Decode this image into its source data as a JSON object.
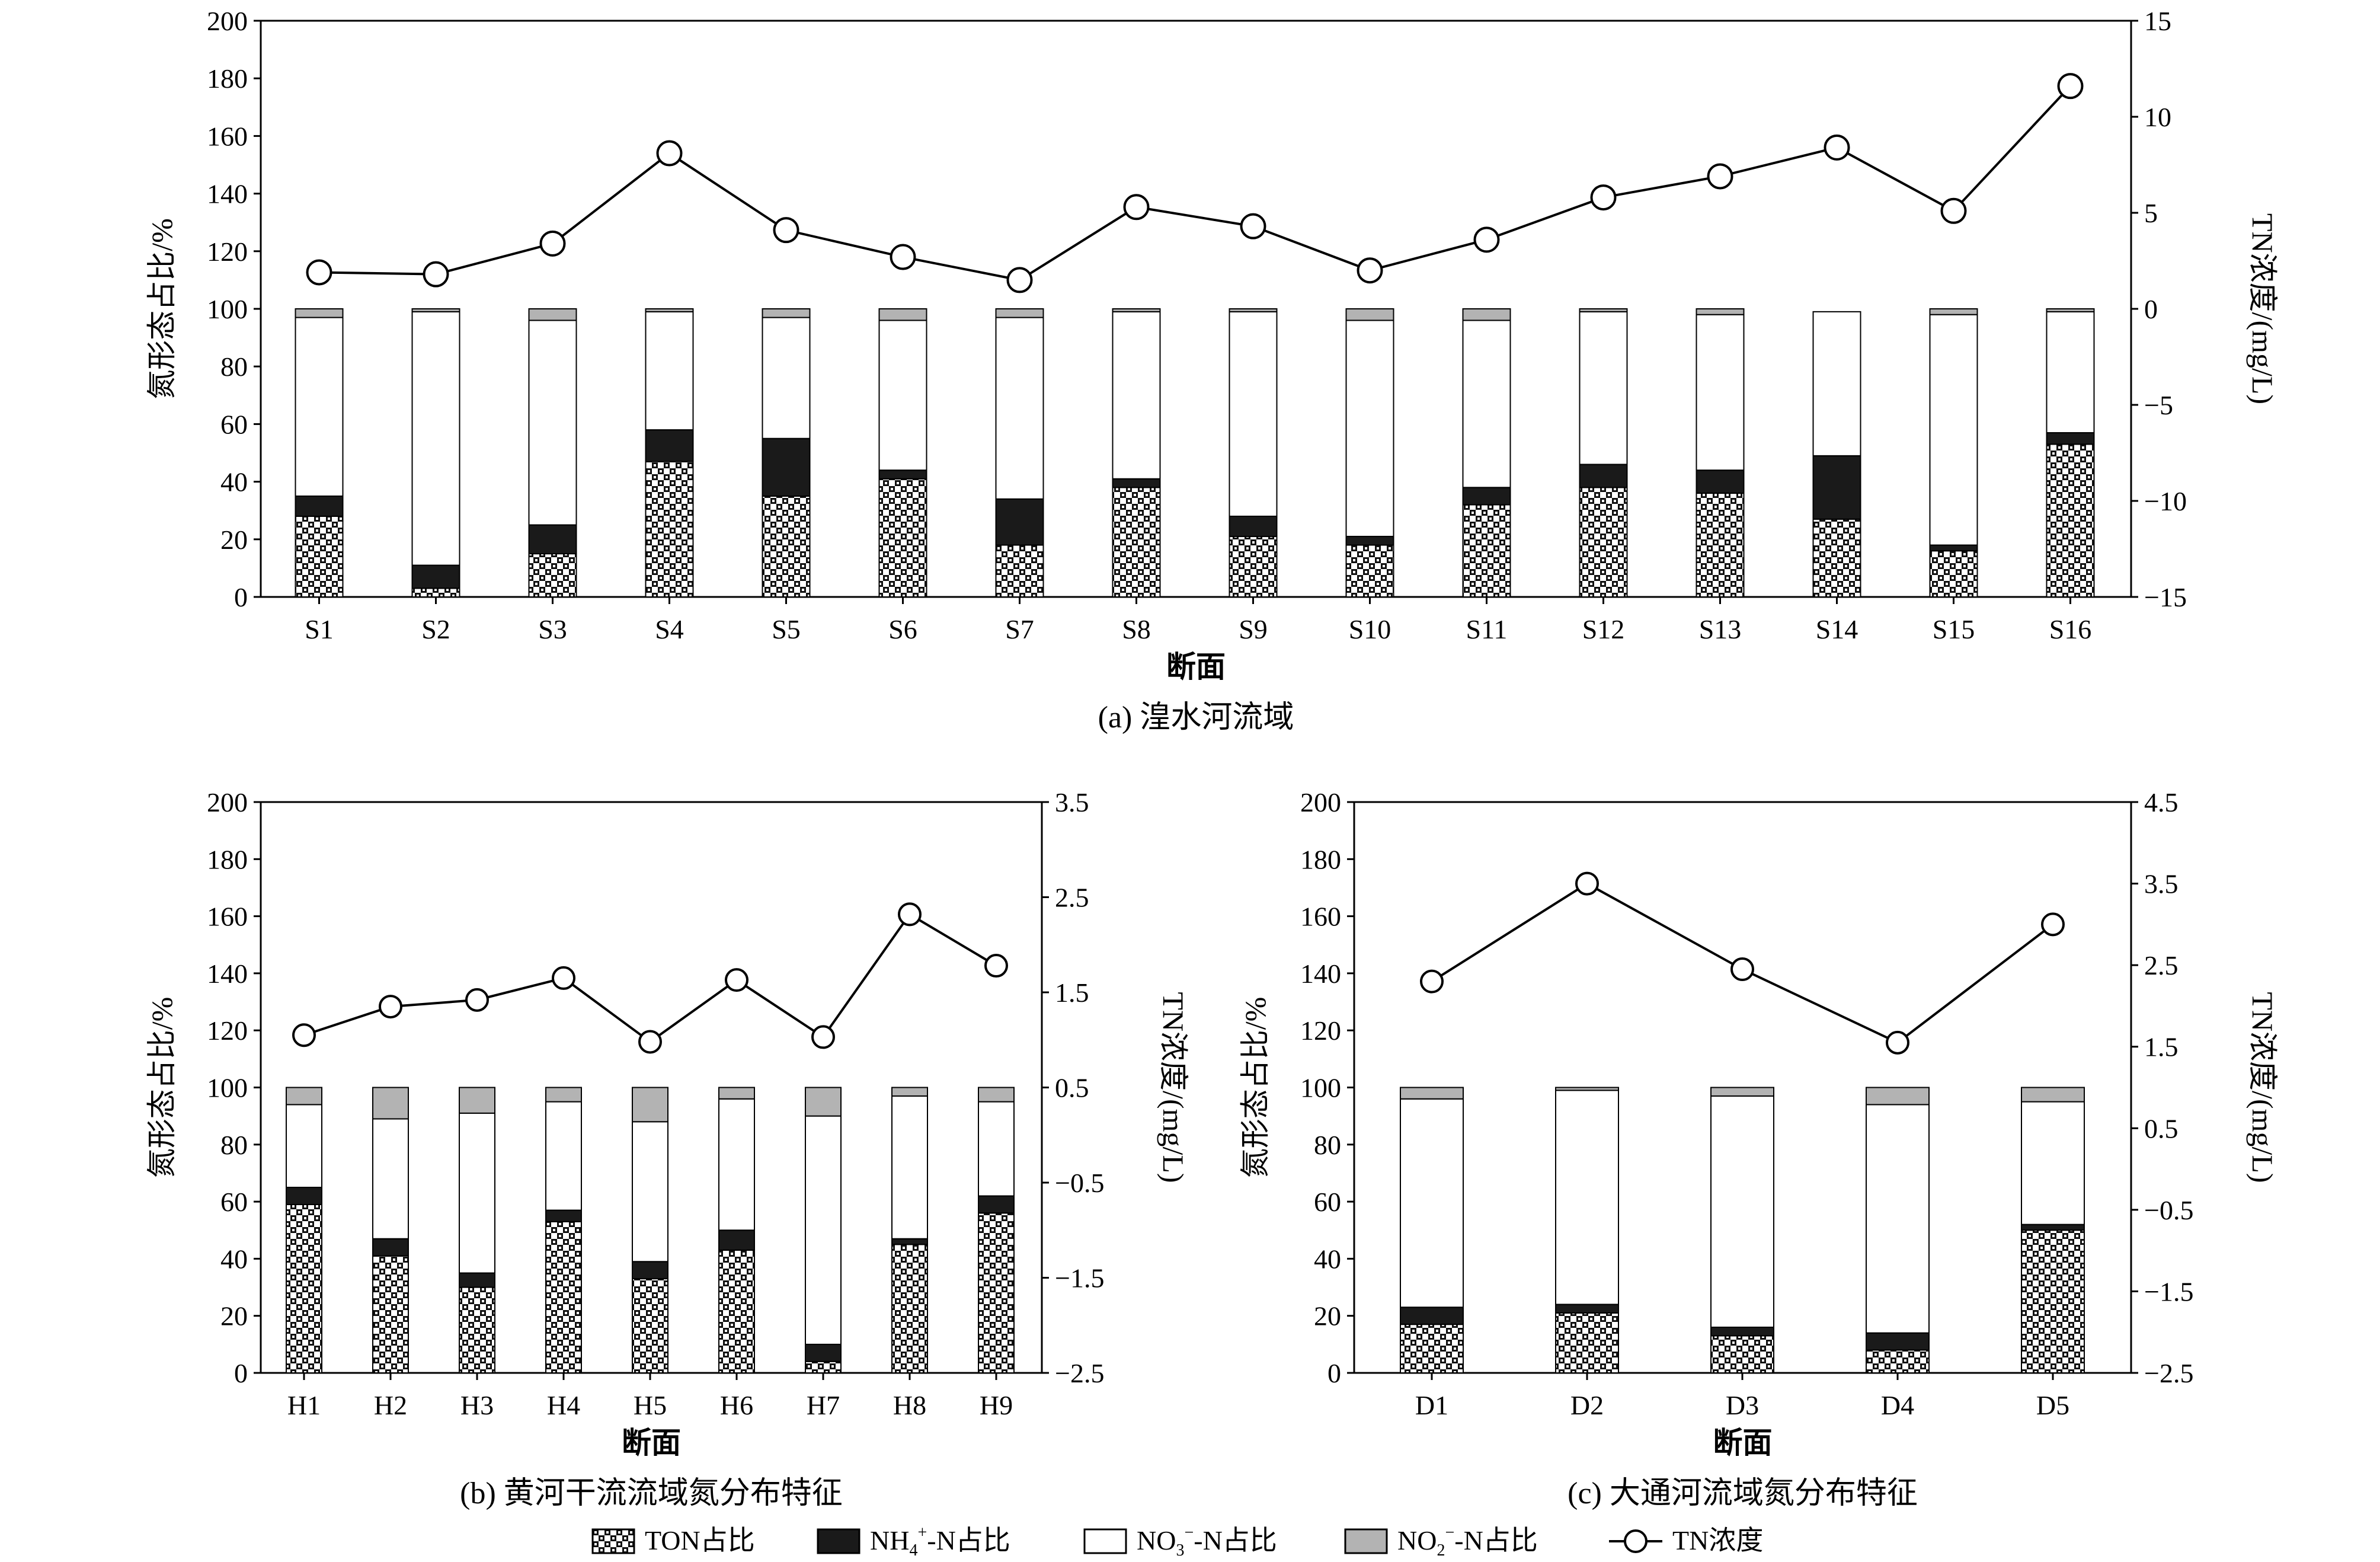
{
  "colors": {
    "ton": "checker pattern",
    "nh4": "#1a1a1a",
    "no3": "#ffffff",
    "no2": "#b3b3b3",
    "line": "#000000"
  },
  "legend": {
    "ton": "TON占比",
    "nh4_main": "NH",
    "nh4_sub": "4",
    "nh4_sup": "+",
    "nh4_tail": "-N占比",
    "no3_main": "NO",
    "no3_sub": "3",
    "no3_sup": "−",
    "no3_tail": "-N占比",
    "no2_main": "NO",
    "no2_sub": "2",
    "no2_sup": "−",
    "no2_tail": "-N占比",
    "tn": "TN浓度"
  },
  "chart_data": [
    {
      "type": "bar",
      "stacked": true,
      "secondary_line": true,
      "caption": "(a) 湟水河流域",
      "xlabel": "断面",
      "ylabel": "氮形态占比/%",
      "y2label": "TN浓度/(mg/L)",
      "ylim": [
        0,
        200
      ],
      "yticks": [
        "0",
        "20",
        "40",
        "60",
        "80",
        "100",
        "120",
        "140",
        "160",
        "180",
        "200"
      ],
      "y2lim": [
        -15,
        15
      ],
      "y2ticks": [
        "−15",
        "−10",
        "−5",
        "0",
        "5",
        "10",
        "15"
      ],
      "categories": [
        "S1",
        "S2",
        "S3",
        "S4",
        "S5",
        "S6",
        "S7",
        "S8",
        "S9",
        "S10",
        "S11",
        "S12",
        "S13",
        "S14",
        "S15",
        "S16"
      ],
      "series": [
        {
          "name": "TON占比",
          "values": [
            28,
            3,
            15,
            47,
            35,
            41,
            18,
            38,
            21,
            18,
            32,
            38,
            36,
            27,
            16,
            53
          ]
        },
        {
          "name": "NH4+-N占比",
          "values": [
            7,
            8,
            10,
            11,
            20,
            3,
            16,
            3,
            7,
            3,
            6,
            8,
            8,
            22,
            2,
            4
          ]
        },
        {
          "name": "NO3−-N占比",
          "values": [
            62,
            88,
            71,
            41,
            42,
            52,
            63,
            58,
            71,
            75,
            58,
            53,
            54,
            50,
            80,
            42
          ]
        },
        {
          "name": "NO2−-N占比",
          "values": [
            3,
            1,
            4,
            1,
            3,
            4,
            3,
            1,
            1,
            4,
            4,
            1,
            2,
            0,
            2,
            1
          ]
        }
      ],
      "line": {
        "name": "TN浓度",
        "values": [
          1.9,
          1.8,
          3.4,
          8.1,
          4.1,
          2.7,
          1.5,
          5.3,
          4.3,
          2.0,
          3.6,
          5.8,
          6.9,
          8.4,
          5.1,
          11.6
        ]
      }
    },
    {
      "type": "bar",
      "stacked": true,
      "secondary_line": true,
      "caption": "(b) 黄河干流流域氮分布特征",
      "xlabel": "断面",
      "ylabel": "氮形态占比/%",
      "y2label": "TN浓度/(mg/L)",
      "ylim": [
        0,
        200
      ],
      "yticks": [
        "0",
        "20",
        "40",
        "60",
        "80",
        "100",
        "120",
        "140",
        "160",
        "180",
        "200"
      ],
      "y2lim": [
        -2.5,
        3.5
      ],
      "y2ticks": [
        "−2.5",
        "−1.5",
        "−0.5",
        "0.5",
        "1.5",
        "2.5",
        "3.5"
      ],
      "categories": [
        "H1",
        "H2",
        "H3",
        "H4",
        "H5",
        "H6",
        "H7",
        "H8",
        "H9"
      ],
      "series": [
        {
          "name": "TON占比",
          "values": [
            59,
            41,
            30,
            53,
            33,
            43,
            4,
            45,
            56
          ]
        },
        {
          "name": "NH4+-N占比",
          "values": [
            6,
            6,
            5,
            4,
            6,
            7,
            6,
            2,
            6
          ]
        },
        {
          "name": "NO3−-N占比",
          "values": [
            29,
            42,
            56,
            38,
            49,
            46,
            80,
            50,
            33
          ]
        },
        {
          "name": "NO2−-N占比",
          "values": [
            6,
            11,
            9,
            5,
            12,
            4,
            10,
            3,
            5
          ]
        }
      ],
      "line": {
        "name": "TN浓度",
        "values": [
          1.05,
          1.35,
          1.42,
          1.65,
          0.98,
          1.63,
          1.03,
          2.32,
          1.78
        ]
      }
    },
    {
      "type": "bar",
      "stacked": true,
      "secondary_line": true,
      "caption": "(c) 大通河流域氮分布特征",
      "xlabel": "断面",
      "ylabel": "氮形态占比/%",
      "y2label": "TN浓度/(mg/L)",
      "ylim": [
        0,
        200
      ],
      "yticks": [
        "0",
        "20",
        "40",
        "60",
        "80",
        "100",
        "120",
        "140",
        "160",
        "180",
        "200"
      ],
      "y2lim": [
        -2.5,
        4.5
      ],
      "y2ticks": [
        "−2.5",
        "−1.5",
        "−0.5",
        "0.5",
        "1.5",
        "2.5",
        "3.5",
        "4.5"
      ],
      "categories": [
        "D1",
        "D2",
        "D3",
        "D4",
        "D5"
      ],
      "series": [
        {
          "name": "TON占比",
          "values": [
            17,
            21,
            13,
            8,
            50
          ]
        },
        {
          "name": "NH4+-N占比",
          "values": [
            6,
            3,
            3,
            6,
            2
          ]
        },
        {
          "name": "NO3−-N占比",
          "values": [
            73,
            75,
            81,
            80,
            43
          ]
        },
        {
          "name": "NO2−-N占比",
          "values": [
            4,
            1,
            3,
            6,
            5
          ]
        }
      ],
      "line": {
        "name": "TN浓度",
        "values": [
          2.3,
          3.5,
          2.45,
          1.55,
          3.0
        ]
      }
    }
  ]
}
